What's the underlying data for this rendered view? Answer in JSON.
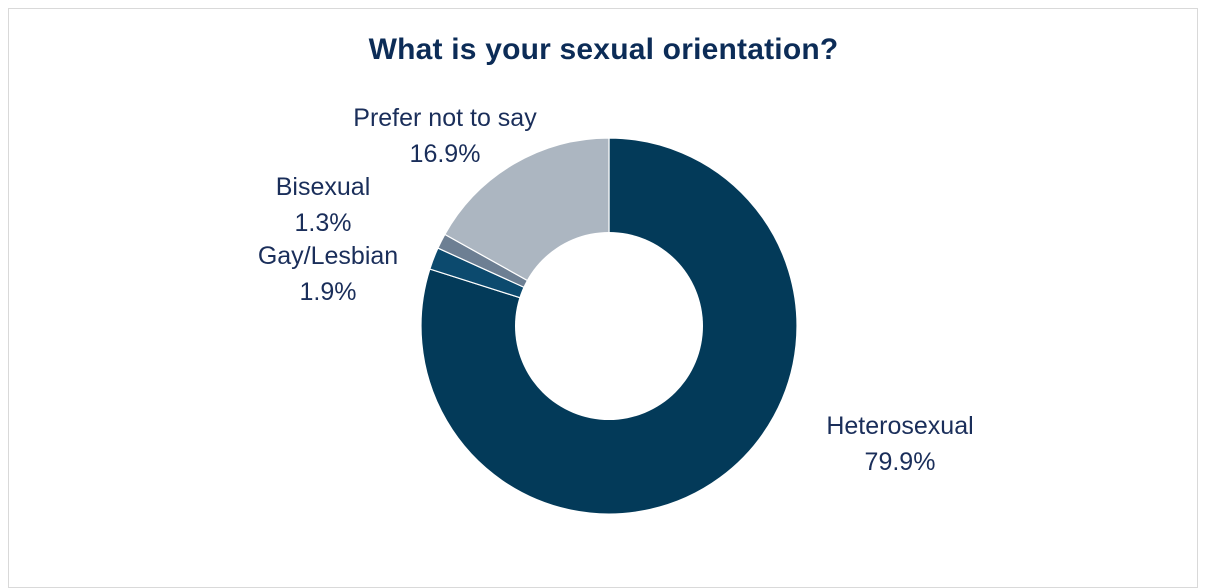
{
  "chart_data": {
    "type": "pie",
    "style": "donut",
    "title": "What is your sexual orientation?",
    "slices": [
      {
        "label": "Heterosexual",
        "value": 79.9,
        "display": "79.9%",
        "color": "#033a59"
      },
      {
        "label": "Gay/Lesbian",
        "value": 1.9,
        "display": "1.9%",
        "color": "#0c4a6e"
      },
      {
        "label": "Bisexual",
        "value": 1.3,
        "display": "1.3%",
        "color": "#6d7f93"
      },
      {
        "label": "Prefer not to say",
        "value": 16.9,
        "display": "16.9%",
        "color": "#acb6c1"
      }
    ],
    "start_angle_deg": 0,
    "direction": "clockwise",
    "legend": "none",
    "label_color": "#1a2e5a",
    "title_color": "#0c2c57"
  }
}
